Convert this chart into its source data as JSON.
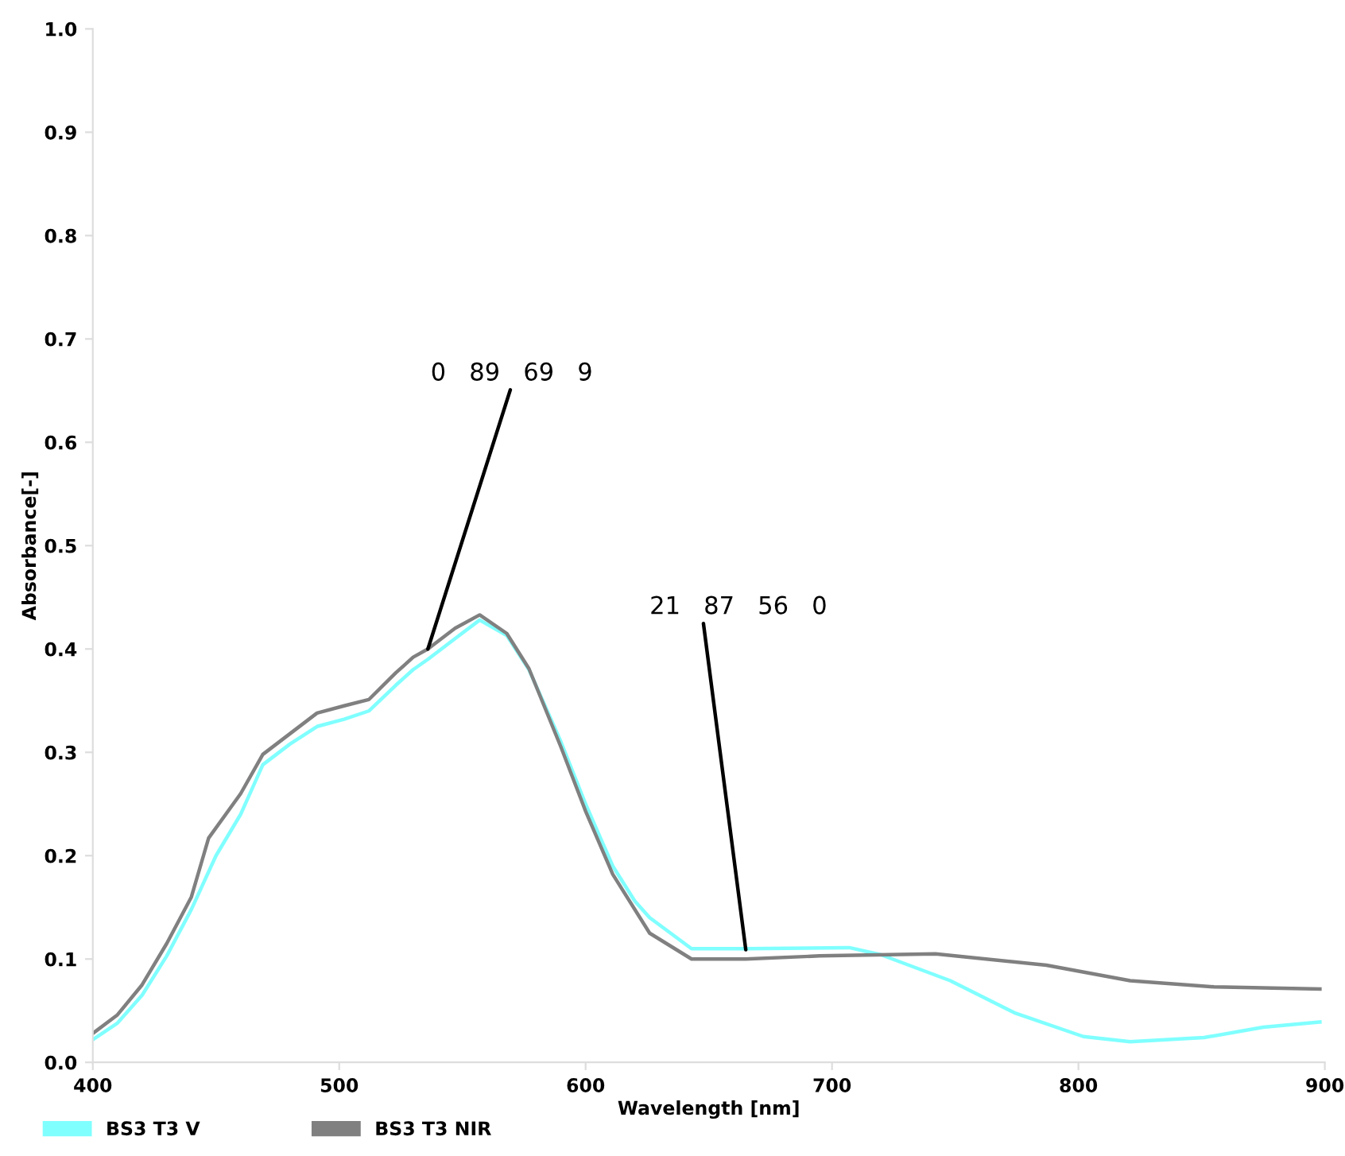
{
  "chart_data": {
    "type": "line",
    "xlabel": "Wavelength [nm]",
    "ylabel": "Absorbance[-]",
    "xlim": [
      400,
      900
    ],
    "ylim": [
      0,
      1
    ],
    "xticks": [
      400,
      500,
      600,
      700,
      800,
      900
    ],
    "yticks": [
      {
        "value": 0,
        "label": "0.0"
      },
      {
        "value": 0.1,
        "label": "0.1"
      },
      {
        "value": 0.2,
        "label": "0.2"
      },
      {
        "value": 0.3,
        "label": "0.3"
      },
      {
        "value": 0.4,
        "label": "0.4"
      },
      {
        "value": 0.5,
        "label": "0.5"
      },
      {
        "value": 0.6,
        "label": "0.6"
      },
      {
        "value": 0.7,
        "label": "0.7"
      },
      {
        "value": 0.8,
        "label": "0.8"
      },
      {
        "value": 0.9,
        "label": "0.9"
      },
      {
        "value": 1,
        "label": "1.0"
      }
    ],
    "grid": false,
    "legend": "bottom left",
    "series": [
      {
        "name": "BS3 T3 V",
        "color": "#80ffff",
        "x": [
          400,
          410,
          420,
          430,
          440,
          450,
          460,
          469,
          480,
          491,
          502,
          512,
          523,
          530,
          536,
          547,
          557,
          568,
          577,
          590,
          600,
          611,
          620,
          626,
          643,
          665,
          707,
          720,
          748,
          774,
          802,
          821,
          851,
          875,
          898
        ],
        "values": [
          0.022,
          0.038,
          0.065,
          0.103,
          0.148,
          0.2,
          0.24,
          0.288,
          0.308,
          0.325,
          0.332,
          0.34,
          0.365,
          0.38,
          0.39,
          0.41,
          0.428,
          0.413,
          0.38,
          0.31,
          0.25,
          0.19,
          0.156,
          0.14,
          0.11,
          0.11,
          0.111,
          0.104,
          0.079,
          0.048,
          0.025,
          0.02,
          0.024,
          0.034,
          0.039
        ]
      },
      {
        "name": "BS3 T3 NIR",
        "color": "#808080",
        "x": [
          400,
          410,
          420,
          430,
          440,
          447,
          460,
          469,
          480,
          491,
          502,
          512,
          523,
          530,
          536,
          547,
          557,
          568,
          577,
          590,
          600,
          611,
          626,
          643,
          665,
          695,
          742,
          787,
          821,
          855,
          898
        ],
        "values": [
          0.028,
          0.046,
          0.075,
          0.115,
          0.16,
          0.217,
          0.26,
          0.298,
          0.318,
          0.338,
          0.345,
          0.351,
          0.377,
          0.392,
          0.4,
          0.42,
          0.433,
          0.415,
          0.381,
          0.305,
          0.243,
          0.182,
          0.125,
          0.1,
          0.1,
          0.103,
          0.105,
          0.094,
          0.079,
          0.073,
          0.071
        ]
      }
    ],
    "annotations": [
      {
        "text": "0   89   69   9",
        "x": 536,
        "y": 0.4
      },
      {
        "text": "21   87   56   0",
        "x": 665,
        "y": 0.109
      }
    ]
  }
}
